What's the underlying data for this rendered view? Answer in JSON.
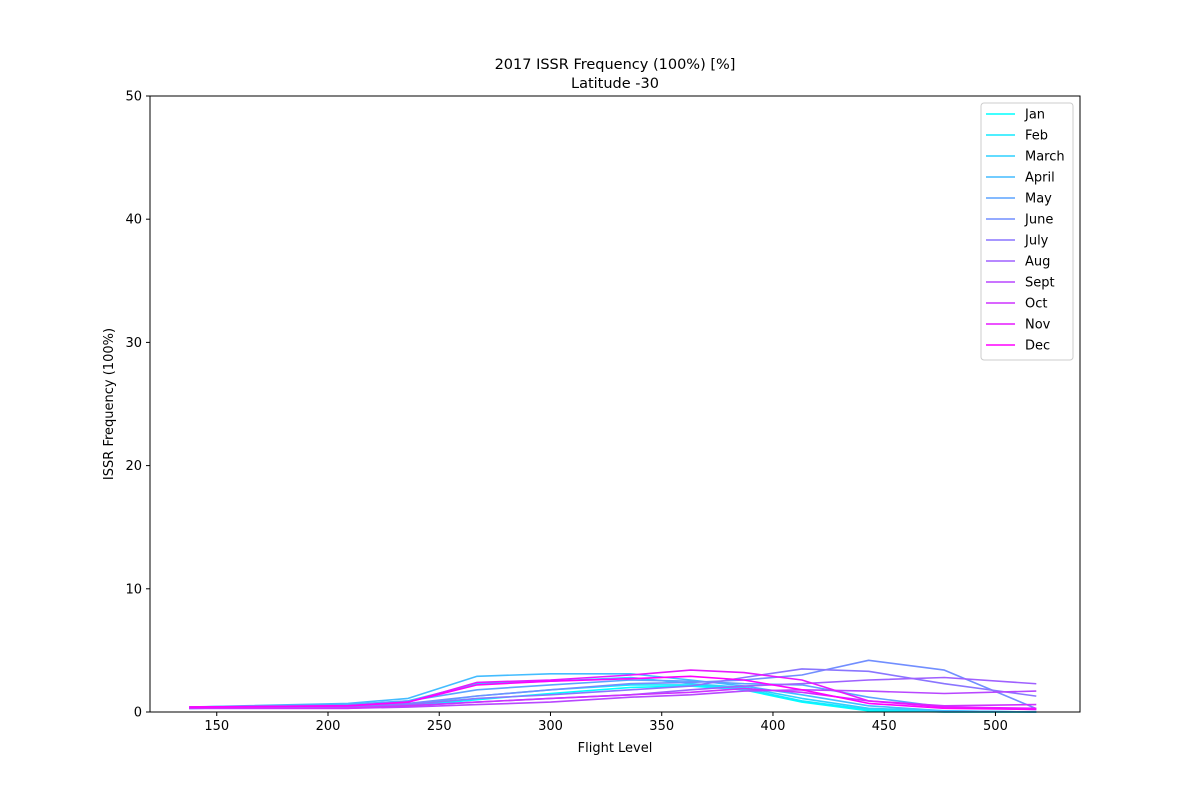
{
  "chart_data": {
    "type": "line",
    "title": "2017 ISSR Frequency (100%) [%]",
    "subtitle": "Latitude -30",
    "xlabel": "Flight Level",
    "ylabel": "ISSR Frequency (100%)",
    "xlim": [
      120,
      538
    ],
    "ylim": [
      0,
      50
    ],
    "xticks": [
      150,
      200,
      250,
      300,
      350,
      400,
      450,
      500
    ],
    "yticks": [
      0,
      10,
      20,
      30,
      40,
      50
    ],
    "grid": false,
    "legend_position": "top-right",
    "x": [
      138,
      209,
      236,
      267,
      300,
      336,
      363,
      387,
      413,
      443,
      477,
      518
    ],
    "series": [
      {
        "name": "Jan",
        "color": "#00ffff",
        "values": [
          0.3,
          0.4,
          0.5,
          1.0,
          1.5,
          2.0,
          2.1,
          1.8,
          0.8,
          0.1,
          0.0,
          0.0
        ]
      },
      {
        "name": "Feb",
        "color": "#15eaff",
        "values": [
          0.3,
          0.4,
          0.6,
          1.3,
          1.8,
          2.2,
          2.2,
          1.9,
          0.9,
          0.2,
          0.0,
          0.0
        ]
      },
      {
        "name": "March",
        "color": "#2ed1ff",
        "values": [
          0.4,
          0.6,
          0.9,
          2.3,
          2.5,
          2.8,
          2.3,
          2.0,
          1.1,
          0.3,
          0.1,
          0.0
        ]
      },
      {
        "name": "April",
        "color": "#43bcff",
        "values": [
          0.4,
          0.7,
          1.1,
          2.9,
          3.1,
          3.1,
          2.6,
          2.1,
          1.4,
          0.5,
          0.1,
          0.0
        ]
      },
      {
        "name": "May",
        "color": "#5ca3ff",
        "values": [
          0.4,
          0.6,
          0.9,
          1.8,
          2.2,
          2.6,
          2.5,
          2.3,
          2.2,
          1.2,
          0.4,
          0.2
        ]
      },
      {
        "name": "June",
        "color": "#718eff",
        "values": [
          0.4,
          0.5,
          0.7,
          1.3,
          1.8,
          2.3,
          2.4,
          2.6,
          3.0,
          4.2,
          3.4,
          0.3
        ]
      },
      {
        "name": "July",
        "color": "#8a75ff",
        "values": [
          0.3,
          0.4,
          0.6,
          1.1,
          1.4,
          1.8,
          2.1,
          2.8,
          3.5,
          3.3,
          2.3,
          1.3
        ]
      },
      {
        "name": "Aug",
        "color": "#9f60ff",
        "values": [
          0.3,
          0.4,
          0.5,
          0.8,
          1.1,
          1.4,
          1.8,
          2.1,
          2.3,
          2.6,
          2.8,
          2.3
        ]
      },
      {
        "name": "Sept",
        "color": "#b847ff",
        "values": [
          0.3,
          0.3,
          0.4,
          0.6,
          0.8,
          1.2,
          1.4,
          1.7,
          1.8,
          1.7,
          1.5,
          1.7
        ]
      },
      {
        "name": "Oct",
        "color": "#cd32ff",
        "values": [
          0.3,
          0.3,
          0.5,
          0.8,
          1.1,
          1.4,
          1.6,
          1.9,
          1.6,
          0.9,
          0.5,
          0.6
        ]
      },
      {
        "name": "Nov",
        "color": "#e619ff",
        "values": [
          0.4,
          0.5,
          0.8,
          2.4,
          2.6,
          3.0,
          3.4,
          3.2,
          2.6,
          0.9,
          0.4,
          0.3
        ]
      },
      {
        "name": "Dec",
        "color": "#ff00ff",
        "values": [
          0.4,
          0.5,
          0.8,
          2.2,
          2.5,
          2.7,
          2.9,
          2.6,
          1.8,
          0.7,
          0.3,
          0.2
        ]
      }
    ]
  }
}
